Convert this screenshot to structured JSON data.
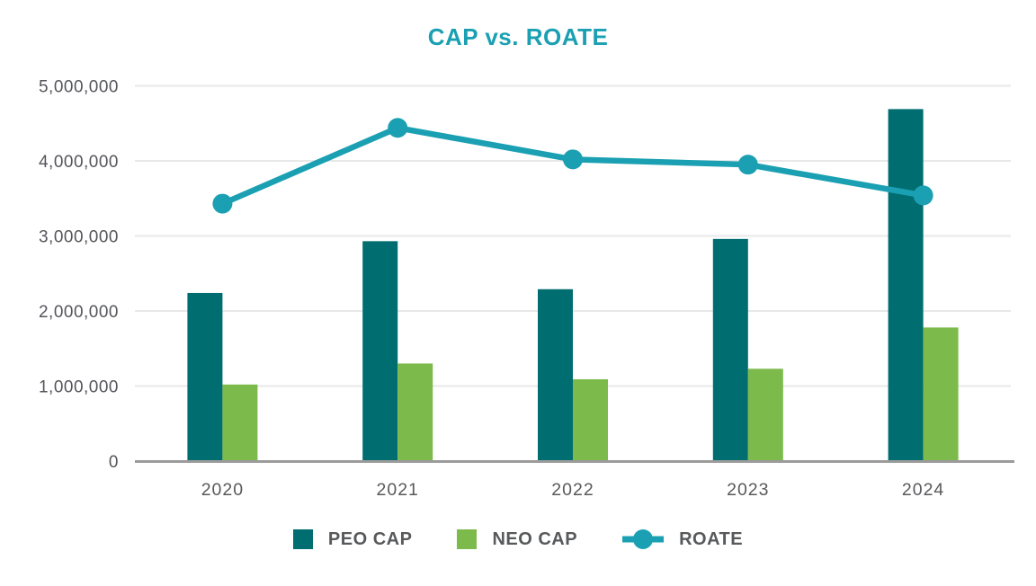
{
  "chart_data": {
    "type": "bar",
    "title": "CAP vs. ROATE",
    "categories": [
      "2020",
      "2021",
      "2022",
      "2023",
      "2024"
    ],
    "series": [
      {
        "name": "PEO CAP",
        "type": "bar",
        "color": "#006d70",
        "values": [
          2240000,
          2930000,
          2290000,
          2960000,
          4690000
        ]
      },
      {
        "name": "NEO CAP",
        "type": "bar",
        "color": "#7cba4b",
        "values": [
          1020000,
          1300000,
          1090000,
          1230000,
          1780000
        ]
      },
      {
        "name": "ROATE",
        "type": "line",
        "color": "#1aa0b2",
        "values": [
          3430000,
          4440000,
          4020000,
          3950000,
          3540000
        ]
      }
    ],
    "ylim": [
      0,
      5000000
    ],
    "ytick_interval": 1000000,
    "yticks": [
      0,
      1000000,
      2000000,
      3000000,
      4000000,
      5000000
    ],
    "ytick_labels": [
      "0",
      "1,000,000",
      "2,000,000",
      "3,000,000",
      "4,000,000",
      "5,000,000"
    ],
    "grid": true,
    "legend_position": "bottom",
    "title_color": "#1aa0b2",
    "axis_text_color": "#58595b",
    "gridline_color": "#e8e8e8",
    "axis_line_color": "#9b9b9b"
  }
}
